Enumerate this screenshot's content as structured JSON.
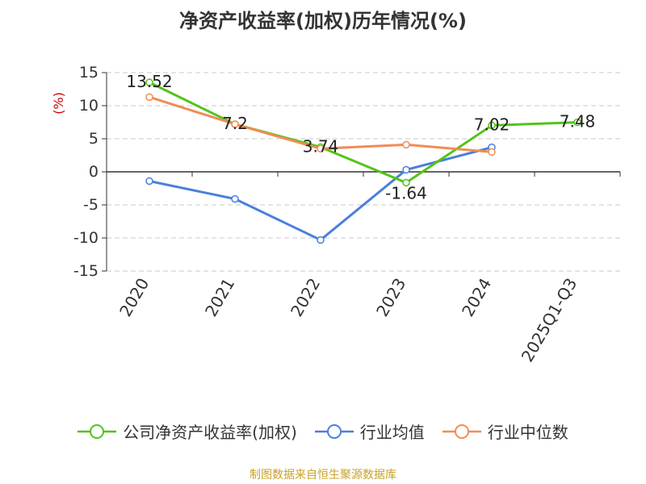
{
  "chart_data": {
    "type": "line",
    "title": "净资产收益率(加权)历年情况(%)",
    "ylabel": "(%)",
    "categories": [
      "2020",
      "2021",
      "2022",
      "2023",
      "2024",
      "2025Q1-Q3"
    ],
    "ylim": [
      -15,
      15
    ],
    "yticks": [
      15,
      10,
      5,
      0,
      -5,
      -10,
      -15
    ],
    "grid": true,
    "legend_position": "bottom",
    "series": [
      {
        "name": "公司净资产收益率(加权)",
        "color": "#52c41a",
        "values": [
          13.52,
          7.2,
          3.74,
          -1.64,
          7.02,
          7.48
        ],
        "labels": [
          "13.52",
          "7.2",
          "3.74",
          "-1.64",
          "7.02",
          "7.48"
        ]
      },
      {
        "name": "行业均值",
        "color": "#4a7fdc",
        "values": [
          -1.4,
          -4.1,
          -10.3,
          0.3,
          3.7,
          null
        ]
      },
      {
        "name": "行业中位数",
        "color": "#f08c55",
        "values": [
          11.3,
          7.2,
          3.5,
          4.1,
          3.0,
          null
        ]
      }
    ]
  },
  "source_text": "制图数据来自恒生聚源数据库"
}
